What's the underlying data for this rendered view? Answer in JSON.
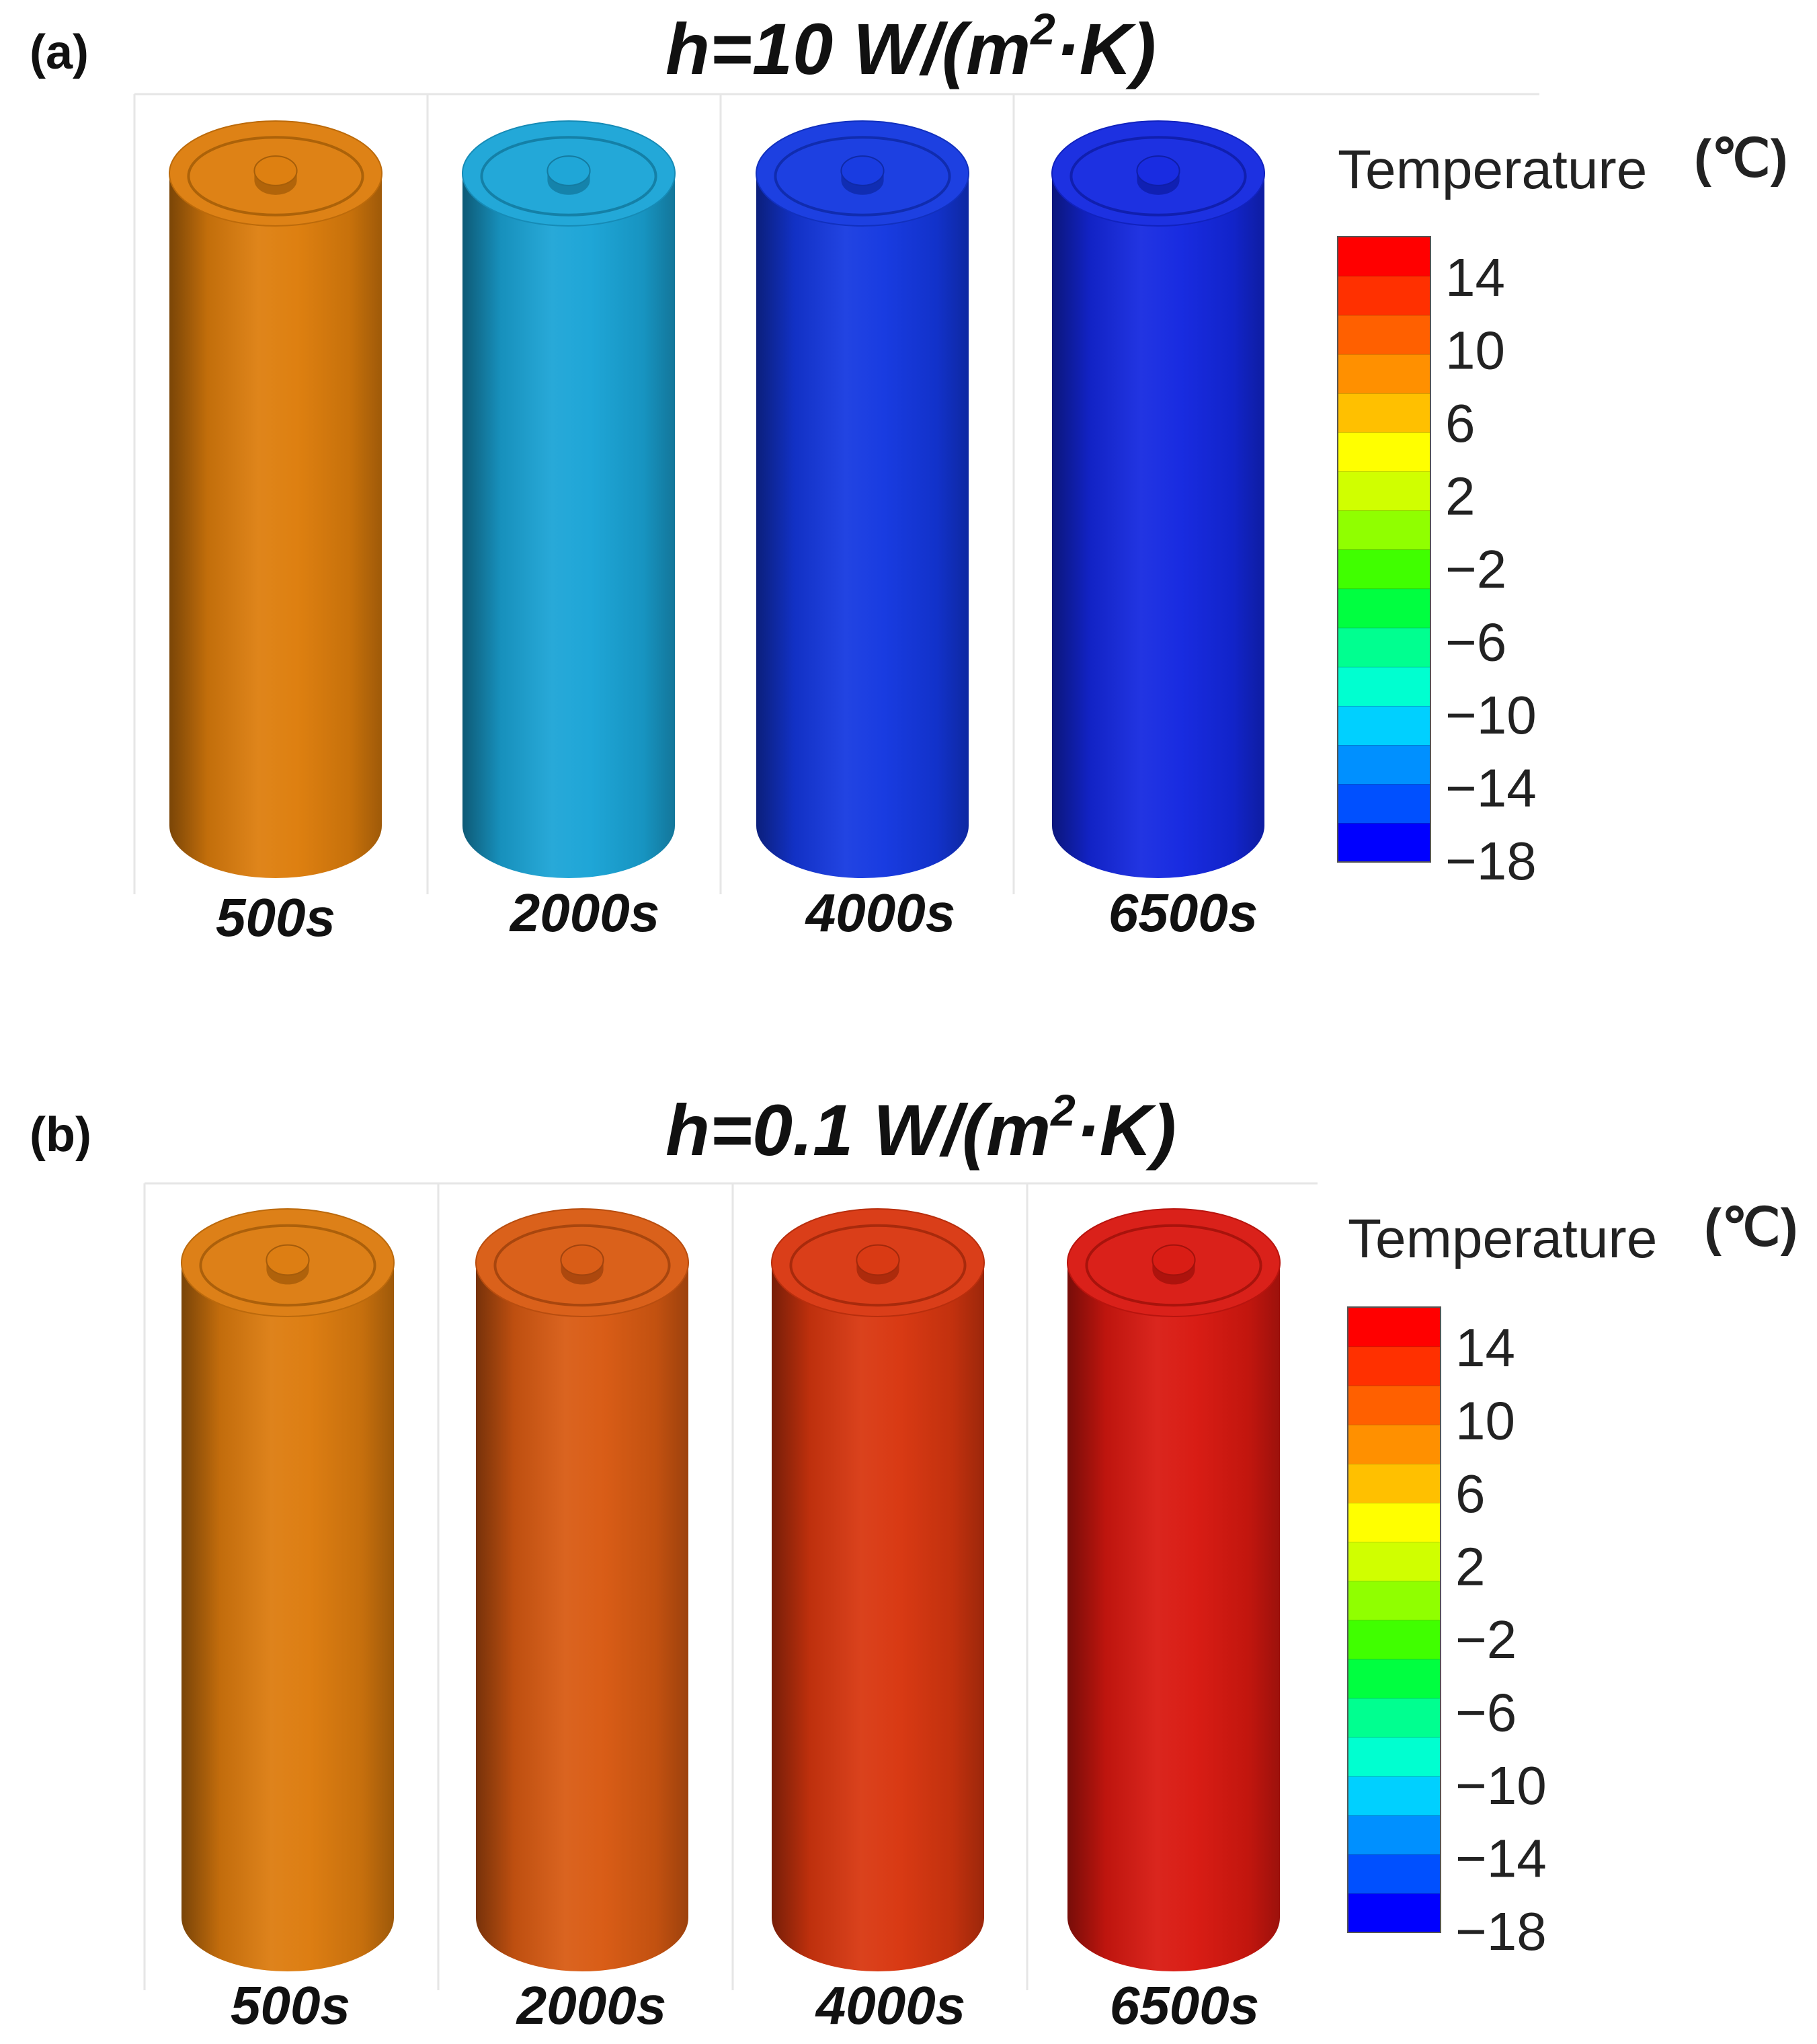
{
  "colorbar": {
    "stops": [
      "#0000ff",
      "#0050ff",
      "#0090ff",
      "#00d0ff",
      "#00ffd0",
      "#00ff90",
      "#00ff40",
      "#40ff00",
      "#90ff00",
      "#d0ff00",
      "#ffff00",
      "#ffc000",
      "#ff9000",
      "#ff6000",
      "#ff3000",
      "#ff0000"
    ],
    "ticks": [
      "14",
      "10",
      "6",
      "2",
      "−2",
      "−6",
      "−10",
      "−14",
      "−18"
    ]
  },
  "panels": [
    {
      "label": "(a)",
      "title_main": "h=10 W/(m",
      "title_sup": "2",
      "title_tail": "·K)",
      "h_value": 10,
      "legend_title": "Temperature",
      "legend_unit": "(℃)",
      "cylinders": [
        {
          "time": "500s",
          "color": "#dd7d0c"
        },
        {
          "time": "2000s",
          "color": "#1aa4d6"
        },
        {
          "time": "4000s",
          "color": "#1438e0"
        },
        {
          "time": "6500s",
          "color": "#1428e0"
        }
      ]
    },
    {
      "label": "(b)",
      "title_main": "h=0.1 W/(m",
      "title_sup": "2",
      "title_tail": "·K)",
      "h_value": 0.1,
      "legend_title": "Temperature",
      "legend_unit": "(℃)",
      "cylinders": [
        {
          "time": "500s",
          "color": "#dc7b0e"
        },
        {
          "time": "2000s",
          "color": "#d85a12"
        },
        {
          "time": "4000s",
          "color": "#d8360f"
        },
        {
          "time": "6500s",
          "color": "#d81810"
        }
      ]
    }
  ]
}
